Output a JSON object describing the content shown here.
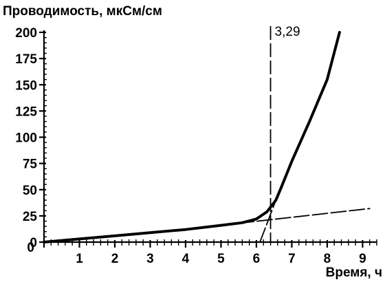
{
  "chart_data": {
    "type": "line",
    "ylabel": "Проводимость, мкСм/см",
    "xlabel": "Время, ч",
    "xlim": [
      0,
      9.4
    ],
    "ylim": [
      0,
      200
    ],
    "x_ticks": [
      1,
      2,
      3,
      4,
      5,
      6,
      7,
      8,
      9
    ],
    "x_tick_labels": [
      "1",
      "2",
      "3",
      "4",
      "5",
      "6",
      "7",
      "8",
      "9"
    ],
    "y_ticks": [
      0,
      25,
      50,
      75,
      100,
      125,
      150,
      175,
      200
    ],
    "y_tick_labels": [
      "0",
      "25",
      "50",
      "75",
      "100",
      "125",
      "150",
      "175",
      "200"
    ],
    "grid": false,
    "series": [
      {
        "style": "solid",
        "points": [
          [
            0,
            0
          ],
          [
            1,
            3
          ],
          [
            2,
            6
          ],
          [
            3,
            9
          ],
          [
            4,
            12
          ],
          [
            5,
            16
          ],
          [
            5.6,
            18.5
          ],
          [
            6.0,
            22
          ],
          [
            6.3,
            29
          ],
          [
            6.55,
            40
          ],
          [
            6.7,
            52
          ],
          [
            7.0,
            77
          ],
          [
            7.5,
            115
          ],
          [
            8.0,
            155
          ],
          [
            8.35,
            200
          ]
        ]
      },
      {
        "style": "dashed",
        "points": [
          [
            5.5,
            18
          ],
          [
            9.2,
            32
          ]
        ]
      },
      {
        "style": "dashed",
        "points": [
          [
            6.1,
            0
          ],
          [
            6.55,
            40
          ]
        ]
      }
    ],
    "annotations": [
      {
        "type": "vline",
        "x": 6.4,
        "style": "dashed",
        "label": "3,29"
      }
    ]
  }
}
